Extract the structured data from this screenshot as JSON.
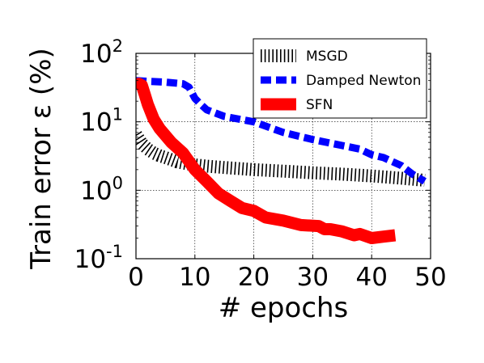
{
  "chart_data": {
    "type": "line",
    "title": "",
    "xlabel": "# epochs",
    "ylabel": "Train error ε (%)",
    "xlim": [
      0,
      50
    ],
    "ylim": [
      0.1,
      100
    ],
    "yscale": "log",
    "grid": true,
    "legend_position": "top-right",
    "x_ticks": [
      "0",
      "10",
      "20",
      "30",
      "40",
      "50"
    ],
    "y_ticks": [
      {
        "base": "10",
        "exp": "-1",
        "value": 0.1
      },
      {
        "base": "10",
        "exp": "0",
        "value": 1
      },
      {
        "base": "10",
        "exp": "1",
        "value": 10
      },
      {
        "base": "10",
        "exp": "2",
        "value": 100
      }
    ],
    "series": [
      {
        "name": "MSGD",
        "color": "#000000",
        "style": "hatched",
        "x": [
          0,
          1,
          2,
          3,
          4,
          5,
          6,
          7,
          8,
          10,
          12,
          15,
          20,
          25,
          30,
          35,
          40,
          45,
          49
        ],
        "y": [
          6.5,
          4.8,
          4.0,
          3.5,
          3.2,
          3.0,
          2.8,
          2.6,
          2.5,
          2.35,
          2.25,
          2.15,
          2.0,
          1.9,
          1.8,
          1.72,
          1.62,
          1.5,
          1.4
        ]
      },
      {
        "name": "Damped Newton",
        "color": "#0000ff",
        "style": "dashed",
        "x": [
          0,
          2,
          5,
          8,
          9,
          10,
          11,
          12,
          15,
          20,
          25,
          30,
          35,
          38,
          40,
          42,
          45,
          47,
          49
        ],
        "y": [
          40,
          39,
          38,
          36,
          32,
          22,
          18,
          15,
          12,
          10,
          7,
          5.5,
          4.5,
          4.0,
          3.3,
          3.0,
          2.3,
          1.7,
          1.35
        ]
      },
      {
        "name": "SFN",
        "color": "#ff0000",
        "style": "solid",
        "x": [
          0,
          0.5,
          1,
          1.5,
          2,
          3,
          4,
          6,
          8,
          10,
          12,
          14,
          16,
          18,
          20,
          22,
          25,
          28,
          31,
          32,
          33,
          35,
          37,
          38,
          40,
          42,
          44
        ],
        "y": [
          32,
          36,
          34,
          25,
          18,
          11,
          8,
          5,
          3.5,
          2,
          1.35,
          0.9,
          0.7,
          0.55,
          0.5,
          0.4,
          0.36,
          0.31,
          0.3,
          0.27,
          0.27,
          0.25,
          0.22,
          0.23,
          0.2,
          0.21,
          0.22
        ]
      }
    ]
  }
}
